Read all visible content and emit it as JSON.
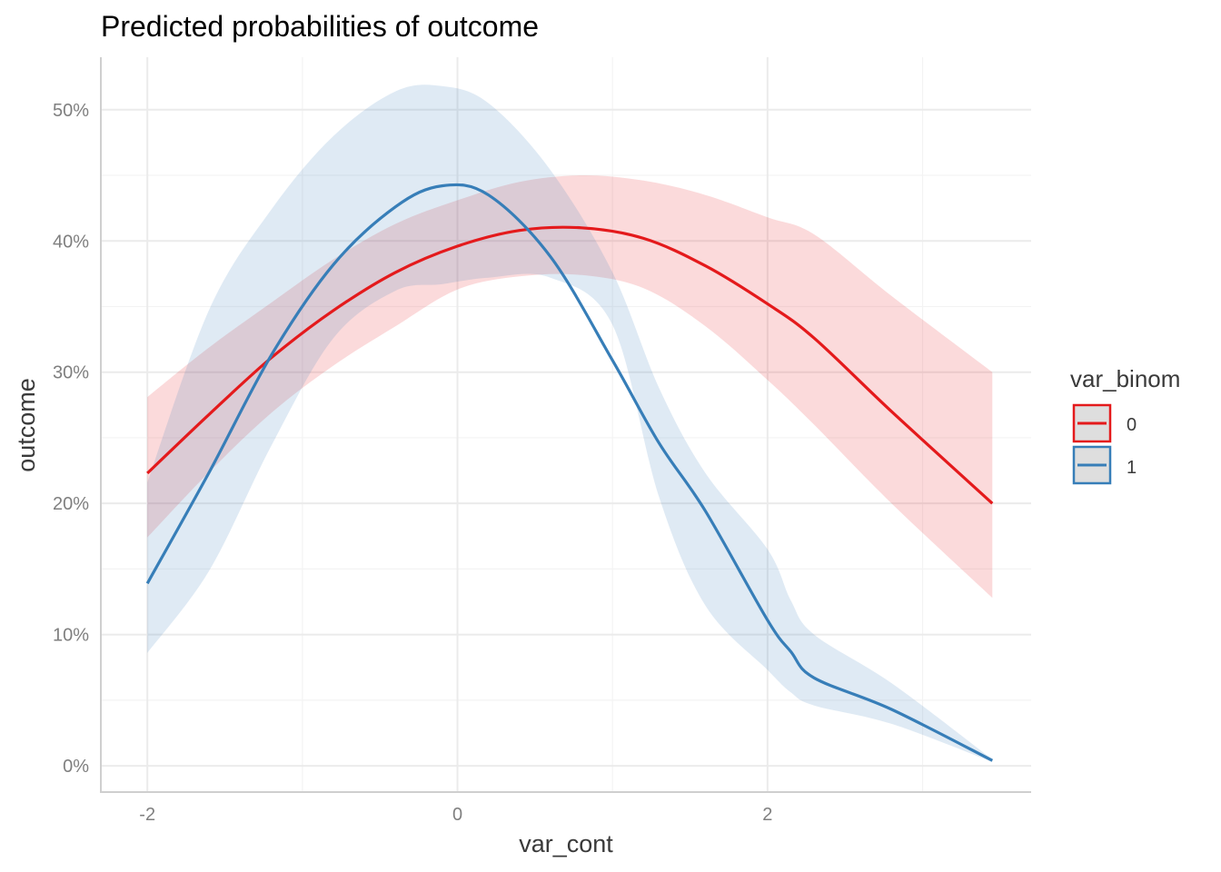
{
  "chart_data": {
    "type": "line",
    "title": "Predicted probabilities of outcome",
    "xlabel": "var_cont",
    "ylabel": "outcome",
    "xlim": [
      -2.3,
      3.7
    ],
    "ylim": [
      -2,
      54
    ],
    "x_ticks": [
      -2,
      0,
      2
    ],
    "x_tick_labels": [
      "-2",
      "0",
      "2"
    ],
    "x_minor_ticks": [
      -1,
      1,
      3
    ],
    "y_ticks": [
      0,
      10,
      20,
      30,
      40,
      50
    ],
    "y_tick_labels": [
      "0%",
      "10%",
      "20%",
      "30%",
      "40%",
      "50%"
    ],
    "y_minor_ticks": [
      5,
      15,
      25,
      35,
      45
    ],
    "grid": true,
    "legend": {
      "title": "var_binom",
      "position": "right"
    },
    "series": [
      {
        "name": "0",
        "color": "#e41a1c",
        "ribbon_color": "#e41a1c",
        "x": [
          -2.0,
          -1.6,
          -1.2,
          -0.8,
          -0.4,
          0.0,
          0.4,
          0.8,
          1.2,
          1.6,
          2.0,
          2.3,
          2.8,
          3.45
        ],
        "y": [
          22.3,
          26.8,
          31.1,
          34.7,
          37.6,
          39.6,
          40.8,
          41.0,
          40.2,
          38.1,
          35.2,
          32.6,
          27.0,
          20.0
        ],
        "lower": [
          17.4,
          22.4,
          26.9,
          30.5,
          33.5,
          36.3,
          37.3,
          37.4,
          36.4,
          33.5,
          29.4,
          26.0,
          20.0,
          12.8
        ],
        "upper": [
          28.1,
          31.9,
          35.3,
          38.6,
          41.3,
          43.1,
          44.5,
          45.0,
          44.6,
          43.5,
          41.8,
          40.5,
          35.8,
          30.0
        ]
      },
      {
        "name": "1",
        "color": "#377eb8",
        "ribbon_color": "#377eb8",
        "x": [
          -2.0,
          -1.6,
          -1.2,
          -0.8,
          -0.4,
          -0.1,
          0.2,
          0.6,
          1.0,
          1.3,
          1.6,
          2.0,
          2.15,
          2.3,
          2.8,
          3.45
        ],
        "y": [
          13.9,
          22.4,
          31.3,
          38.2,
          42.6,
          44.2,
          43.5,
          38.8,
          30.9,
          24.6,
          19.4,
          11.1,
          8.7,
          6.7,
          4.3,
          0.4
        ],
        "lower": [
          8.6,
          14.9,
          24.4,
          32.6,
          36.2,
          36.7,
          37.2,
          37.2,
          33.6,
          20.5,
          12.2,
          7.3,
          5.6,
          4.6,
          3.2,
          0.3
        ],
        "upper": [
          21.6,
          34.8,
          42.4,
          48.0,
          51.4,
          51.8,
          50.5,
          45.4,
          37.6,
          28.8,
          22.3,
          16.5,
          12.6,
          10.0,
          6.3,
          0.5
        ]
      }
    ]
  }
}
